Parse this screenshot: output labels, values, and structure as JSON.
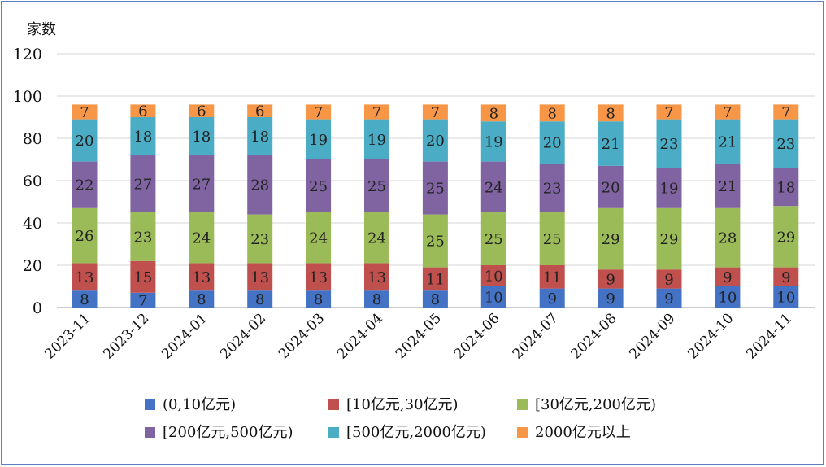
{
  "chart_data": {
    "type": "bar",
    "stacked": true,
    "ylabel": "家数",
    "ylim": [
      0,
      120
    ],
    "yticks": [
      0,
      20,
      40,
      60,
      80,
      100,
      120
    ],
    "grid": true,
    "legend_position": "bottom",
    "categories": [
      "2023-11",
      "2023-12",
      "2024-01",
      "2024-02",
      "2024-03",
      "2024-04",
      "2024-05",
      "2024-06",
      "2024-07",
      "2024-08",
      "2024-09",
      "2024-10",
      "2024-11"
    ],
    "series": [
      {
        "name": "(0,10亿元)",
        "color": "#4472c4",
        "values": [
          8,
          7,
          8,
          8,
          8,
          8,
          8,
          10,
          9,
          9,
          9,
          10,
          10
        ]
      },
      {
        "name": "[10亿元,30亿元)",
        "color": "#c0504d",
        "values": [
          13,
          15,
          13,
          13,
          13,
          13,
          11,
          10,
          11,
          9,
          9,
          9,
          9
        ]
      },
      {
        "name": "[30亿元,200亿元)",
        "color": "#9bbb59",
        "values": [
          26,
          23,
          24,
          23,
          24,
          24,
          25,
          25,
          25,
          29,
          29,
          28,
          29
        ]
      },
      {
        "name": "[200亿元,500亿元)",
        "color": "#8064a2",
        "values": [
          22,
          27,
          27,
          28,
          25,
          25,
          25,
          24,
          23,
          20,
          19,
          21,
          18
        ]
      },
      {
        "name": "[500亿元,2000亿元)",
        "color": "#4bacc6",
        "values": [
          20,
          18,
          18,
          18,
          19,
          19,
          20,
          19,
          20,
          21,
          23,
          21,
          23
        ]
      },
      {
        "name": "2000亿元以上",
        "color": "#f79646",
        "values": [
          7,
          6,
          6,
          6,
          7,
          7,
          7,
          8,
          8,
          8,
          7,
          7,
          7
        ]
      }
    ]
  }
}
